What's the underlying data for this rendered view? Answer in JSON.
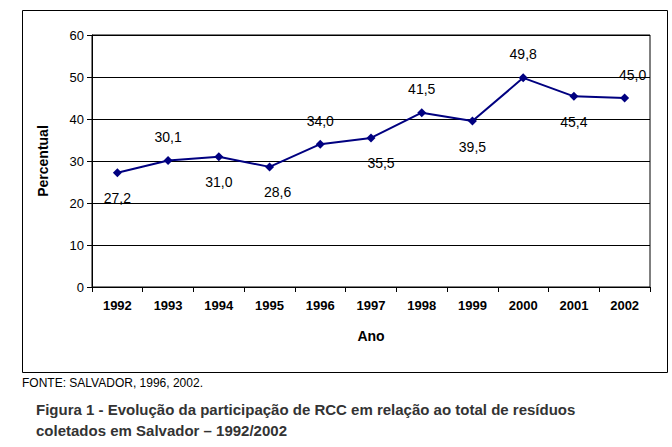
{
  "chart_data": {
    "type": "line",
    "title": "Figura 1 - Evolução da participação de RCC em relação ao total de resíduos coletados em Salvador – 1992/2002",
    "annotations": [
      "FONTE: SALVADOR, 1996, 2002."
    ],
    "x_label": "Ano",
    "y_label": "Percentual",
    "categories": [
      "1992",
      "1993",
      "1994",
      "1995",
      "1996",
      "1997",
      "1998",
      "1999",
      "2000",
      "2001",
      "2002"
    ],
    "values": [
      27.2,
      30.1,
      31.0,
      28.6,
      34.0,
      35.5,
      41.5,
      39.5,
      49.8,
      45.4,
      45.0
    ],
    "value_labels": [
      "27,2",
      "30,1",
      "31,0",
      "28,6",
      "34,0",
      "35,5",
      "41,5",
      "39,5",
      "49,8",
      "45,4",
      "45,0"
    ],
    "color": "#000080",
    "marker": "diamond",
    "ylim": [
      0,
      60
    ],
    "yticks": [
      0,
      10,
      20,
      30,
      40,
      50,
      60
    ],
    "grid": true,
    "data_labels": true
  }
}
